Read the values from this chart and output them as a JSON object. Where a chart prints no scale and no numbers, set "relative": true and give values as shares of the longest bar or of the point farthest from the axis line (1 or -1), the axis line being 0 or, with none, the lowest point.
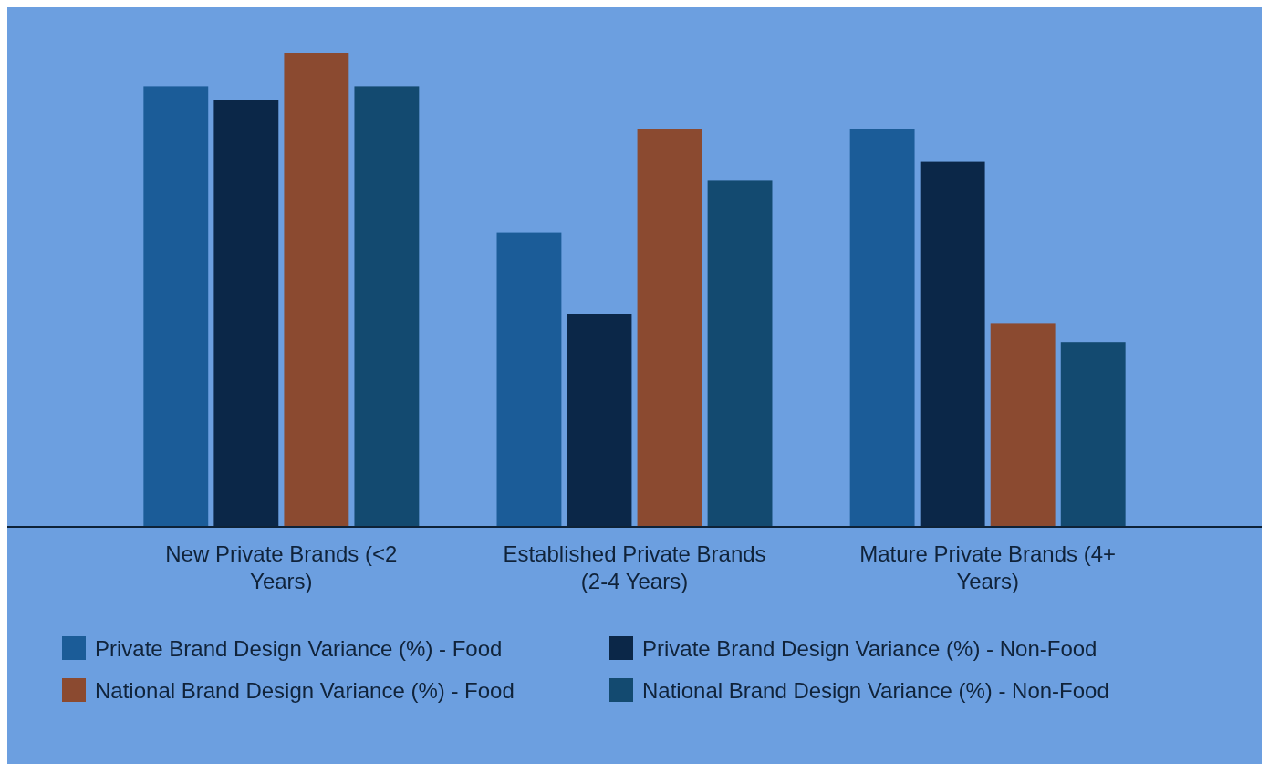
{
  "chart_data": {
    "type": "bar",
    "relative": true,
    "categories": [
      "New Private Brands (<2 Years)",
      "Established Private Brands (2-4 Years)",
      "Mature Private Brands (4+ Years)"
    ],
    "series": [
      {
        "name": "Private Brand Design Variance (%) - Food",
        "color": "#1b5c98",
        "values": [
          0.93,
          0.62,
          0.84
        ]
      },
      {
        "name": "Private Brand Design Variance (%) - Non-Food",
        "color": "#0b2748",
        "values": [
          0.9,
          0.45,
          0.77
        ]
      },
      {
        "name": "National Brand Design Variance (%) - Food",
        "color": "#8b4a30",
        "values": [
          1,
          0.84,
          0.43
        ]
      },
      {
        "name": "National Brand Design Variance (%) - Non-Food",
        "color": "#134a70",
        "values": [
          0.93,
          0.73,
          0.39
        ]
      }
    ],
    "legend": "bottom"
  }
}
